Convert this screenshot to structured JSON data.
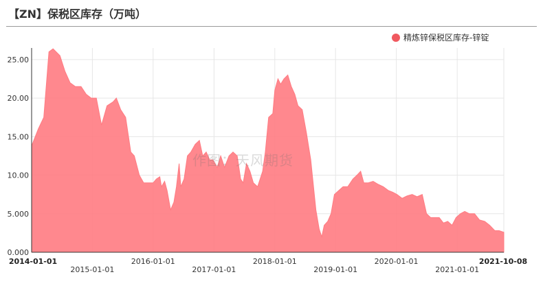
{
  "title": "【ZN】保税区库存（万吨）",
  "watermark": "作图：天风期货",
  "colors": {
    "series": "#ff7b82",
    "dot": "#f0595f"
  },
  "chart_data": {
    "type": "area",
    "title": "【ZN】保税区库存（万吨）",
    "xlabel": "",
    "ylabel": "",
    "ylim": [
      0,
      26.5
    ],
    "yticks": [
      "0.000",
      "5.000",
      "10.00",
      "15.00",
      "20.00",
      "25.00"
    ],
    "xlim": [
      "2014-01-01",
      "2021-10-08"
    ],
    "xticks": [
      {
        "label": "2014-01-01",
        "date": "2014-01-01",
        "row": 1,
        "bold": true
      },
      {
        "label": "2015-01-01",
        "date": "2015-01-01",
        "row": 2,
        "bold": false
      },
      {
        "label": "2016-01-01",
        "date": "2016-01-01",
        "row": 1,
        "bold": false
      },
      {
        "label": "2017-01-01",
        "date": "2017-01-01",
        "row": 2,
        "bold": false
      },
      {
        "label": "2018-01-01",
        "date": "2018-01-01",
        "row": 1,
        "bold": false
      },
      {
        "label": "2019-01-01",
        "date": "2019-01-01",
        "row": 2,
        "bold": false
      },
      {
        "label": "2020-01-01",
        "date": "2020-01-01",
        "row": 1,
        "bold": false
      },
      {
        "label": "2021-01-01",
        "date": "2021-01-01",
        "row": 2,
        "bold": false
      },
      {
        "label": "2021-10-08",
        "date": "2021-10-08",
        "row": 1,
        "bold": true
      }
    ],
    "legend": "top-right",
    "grid": true,
    "series": [
      {
        "name": "精炼锌保税区库存-锌锭",
        "points": [
          [
            "2014-01-01",
            13.8
          ],
          [
            "2014-02-10",
            16.0
          ],
          [
            "2014-03-15",
            17.5
          ],
          [
            "2014-04-15",
            26.0
          ],
          [
            "2014-05-10",
            26.4
          ],
          [
            "2014-06-20",
            25.5
          ],
          [
            "2014-07-20",
            23.5
          ],
          [
            "2014-08-20",
            22.0
          ],
          [
            "2014-09-20",
            21.5
          ],
          [
            "2014-10-25",
            21.5
          ],
          [
            "2014-11-25",
            20.5
          ],
          [
            "2014-12-25",
            20.0
          ],
          [
            "2015-01-25",
            20.0
          ],
          [
            "2015-02-25",
            16.5
          ],
          [
            "2015-03-30",
            19.0
          ],
          [
            "2015-05-05",
            19.5
          ],
          [
            "2015-05-25",
            20.0
          ],
          [
            "2015-06-20",
            18.5
          ],
          [
            "2015-07-20",
            17.5
          ],
          [
            "2015-08-20",
            13.0
          ],
          [
            "2015-09-10",
            12.5
          ],
          [
            "2015-10-10",
            10.0
          ],
          [
            "2015-11-05",
            9.0
          ],
          [
            "2015-12-05",
            9.0
          ],
          [
            "2016-01-01",
            9.0
          ],
          [
            "2016-01-20",
            9.5
          ],
          [
            "2016-02-10",
            9.8
          ],
          [
            "2016-02-20",
            8.5
          ],
          [
            "2016-03-10",
            9.2
          ],
          [
            "2016-03-25",
            8.0
          ],
          [
            "2016-04-15",
            5.5
          ],
          [
            "2016-05-05",
            6.5
          ],
          [
            "2016-05-20",
            8.5
          ],
          [
            "2016-06-05",
            11.5
          ],
          [
            "2016-06-15",
            8.5
          ],
          [
            "2016-07-05",
            9.5
          ],
          [
            "2016-07-25",
            12.5
          ],
          [
            "2016-08-15",
            13.0
          ],
          [
            "2016-09-10",
            14.0
          ],
          [
            "2016-10-05",
            14.5
          ],
          [
            "2016-10-25",
            12.5
          ],
          [
            "2016-11-15",
            13.0
          ],
          [
            "2016-12-05",
            12.0
          ],
          [
            "2016-12-25",
            12.0
          ],
          [
            "2017-01-20",
            11.0
          ],
          [
            "2017-02-10",
            12.5
          ],
          [
            "2017-03-05",
            11.0
          ],
          [
            "2017-04-01",
            12.5
          ],
          [
            "2017-04-25",
            13.0
          ],
          [
            "2017-05-20",
            12.5
          ],
          [
            "2017-06-10",
            9.5
          ],
          [
            "2017-06-25",
            9.0
          ],
          [
            "2017-07-15",
            11.5
          ],
          [
            "2017-08-05",
            10.5
          ],
          [
            "2017-08-25",
            9.0
          ],
          [
            "2017-09-20",
            8.5
          ],
          [
            "2017-10-20",
            10.5
          ],
          [
            "2017-11-05",
            13.0
          ],
          [
            "2017-11-25",
            17.5
          ],
          [
            "2017-12-20",
            18.0
          ],
          [
            "2018-01-01",
            21.0
          ],
          [
            "2018-01-20",
            22.5
          ],
          [
            "2018-02-05",
            21.8
          ],
          [
            "2018-02-25",
            22.5
          ],
          [
            "2018-03-20",
            23.0
          ],
          [
            "2018-04-10",
            21.5
          ],
          [
            "2018-05-01",
            20.5
          ],
          [
            "2018-05-20",
            19.0
          ],
          [
            "2018-06-15",
            18.5
          ],
          [
            "2018-07-10",
            15.5
          ],
          [
            "2018-08-05",
            12.0
          ],
          [
            "2018-09-05",
            5.5
          ],
          [
            "2018-09-25",
            3.0
          ],
          [
            "2018-10-10",
            2.0
          ],
          [
            "2018-10-25",
            3.5
          ],
          [
            "2018-11-15",
            4.0
          ],
          [
            "2018-12-05",
            5.0
          ],
          [
            "2018-12-25",
            7.5
          ],
          [
            "2019-01-20",
            8.0
          ],
          [
            "2019-02-15",
            8.5
          ],
          [
            "2019-03-15",
            8.5
          ],
          [
            "2019-04-15",
            9.5
          ],
          [
            "2019-05-10",
            10.0
          ],
          [
            "2019-06-01",
            10.5
          ],
          [
            "2019-06-20",
            9.0
          ],
          [
            "2019-07-15",
            9.0
          ],
          [
            "2019-08-15",
            9.2
          ],
          [
            "2019-09-15",
            8.8
          ],
          [
            "2019-10-15",
            8.5
          ],
          [
            "2019-11-15",
            8.0
          ],
          [
            "2019-12-10",
            7.8
          ],
          [
            "2020-01-05",
            7.5
          ],
          [
            "2020-02-05",
            7.0
          ],
          [
            "2020-03-05",
            7.3
          ],
          [
            "2020-04-05",
            7.5
          ],
          [
            "2020-05-05",
            7.2
          ],
          [
            "2020-06-05",
            7.5
          ],
          [
            "2020-07-01",
            5.0
          ],
          [
            "2020-07-25",
            4.5
          ],
          [
            "2020-08-20",
            4.5
          ],
          [
            "2020-09-15",
            4.5
          ],
          [
            "2020-10-10",
            3.8
          ],
          [
            "2020-11-05",
            4.0
          ],
          [
            "2020-12-01",
            3.5
          ],
          [
            "2020-12-25",
            4.5
          ],
          [
            "2021-01-20",
            5.0
          ],
          [
            "2021-02-15",
            5.3
          ],
          [
            "2021-03-15",
            5.0
          ],
          [
            "2021-04-15",
            5.0
          ],
          [
            "2021-05-15",
            4.2
          ],
          [
            "2021-06-15",
            4.0
          ],
          [
            "2021-07-15",
            3.5
          ],
          [
            "2021-08-15",
            2.8
          ],
          [
            "2021-09-10",
            2.8
          ],
          [
            "2021-10-08",
            2.6
          ]
        ]
      }
    ]
  }
}
